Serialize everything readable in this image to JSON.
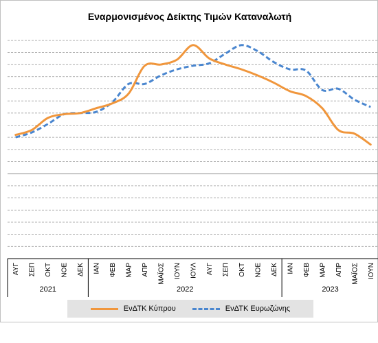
{
  "chart_data": {
    "type": "line",
    "title": "Εναρμονισμένος Δείκτης Τιμών Καταναλωτή",
    "grid": true,
    "legend_position": "bottom",
    "x": [
      "ΑΥΓ",
      "ΣΕΠ",
      "ΟΚΤ",
      "ΝΟΕ",
      "ΔΕΚ",
      "ΙΑΝ",
      "ΦΕΒ",
      "ΜΑΡ",
      "ΑΠΡ",
      "ΜΑΪΟΣ",
      "ΙΟΥΝ",
      "ΙΟΥΛ",
      "ΑΥΓ",
      "ΣΕΠ",
      "ΟΚΤ",
      "ΝΟΕ",
      "ΔΕΚ",
      "ΙΑΝ",
      "ΦΕΒ",
      "ΜΑΡ",
      "ΑΠΡ",
      "ΜΑΪΟΣ",
      "ΙΟΥΝ"
    ],
    "year_groups": [
      {
        "label": "2021",
        "count": 5
      },
      {
        "label": "2022",
        "count": 12
      },
      {
        "label": "2023",
        "count": 6
      }
    ],
    "ylim": [
      -7,
      12
    ],
    "series": [
      {
        "name": "ΕνΔΤΚ Κύπρου",
        "color": "#f0963c",
        "style": "solid",
        "values": [
          3.2,
          3.6,
          4.6,
          4.9,
          5.0,
          5.4,
          5.8,
          6.6,
          8.9,
          9.0,
          9.4,
          10.6,
          9.5,
          9.0,
          8.6,
          8.1,
          7.5,
          6.8,
          6.4,
          5.4,
          3.6,
          3.3,
          2.4
        ]
      },
      {
        "name": "ΕνΔΤΚ Ευρωζώνης",
        "color": "#4a86cf",
        "style": "dashed",
        "values": [
          3.0,
          3.4,
          4.1,
          4.9,
          5.0,
          5.1,
          5.9,
          7.4,
          7.4,
          8.1,
          8.6,
          8.9,
          9.1,
          9.9,
          10.6,
          10.1,
          9.2,
          8.6,
          8.5,
          6.9,
          7.0,
          6.1,
          5.5
        ]
      }
    ]
  }
}
